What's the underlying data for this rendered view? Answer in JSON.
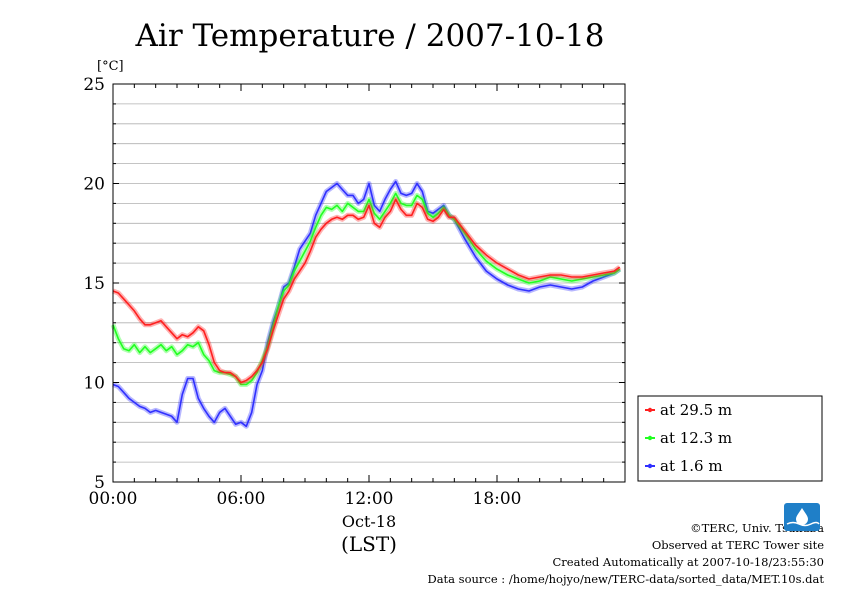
{
  "chart_data": {
    "type": "line",
    "title": "Air Temperature / 2007-10-18",
    "ylabel": "[°C]",
    "xlabel": "(LST)",
    "date_label": "Oct-18",
    "ylim": [
      5,
      25
    ],
    "yticks": [
      "5",
      "10",
      "15",
      "20",
      "25"
    ],
    "xlim": [
      0,
      24
    ],
    "xticks": [
      {
        "value": 0,
        "label": "00:00"
      },
      {
        "value": 6,
        "label": "06:00"
      },
      {
        "value": 12,
        "label": "12:00"
      },
      {
        "value": 18,
        "label": "18:00"
      }
    ],
    "grid": true,
    "legend_position": "lower-right-outside",
    "series": [
      {
        "name": "at 29.5 m",
        "color": "#ff2020",
        "x": [
          0,
          0.25,
          0.5,
          0.75,
          1,
          1.25,
          1.5,
          1.75,
          2,
          2.25,
          2.5,
          2.75,
          3,
          3.25,
          3.5,
          3.75,
          4,
          4.25,
          4.5,
          4.75,
          5,
          5.25,
          5.5,
          5.75,
          6,
          6.25,
          6.5,
          6.75,
          7,
          7.25,
          7.5,
          7.75,
          8,
          8.25,
          8.5,
          8.75,
          9,
          9.25,
          9.5,
          9.75,
          10,
          10.25,
          10.5,
          10.75,
          11,
          11.25,
          11.5,
          11.75,
          12,
          12.25,
          12.5,
          12.75,
          13,
          13.25,
          13.5,
          13.75,
          14,
          14.25,
          14.5,
          14.75,
          15,
          15.25,
          15.5,
          15.75,
          16,
          16.5,
          17,
          17.5,
          18,
          18.5,
          19,
          19.5,
          20,
          20.5,
          21,
          21.5,
          22,
          22.5,
          23,
          23.5,
          23.75
        ],
        "values": [
          14.6,
          14.5,
          14.2,
          13.9,
          13.6,
          13.2,
          12.9,
          12.9,
          13.0,
          13.1,
          12.8,
          12.5,
          12.2,
          12.4,
          12.3,
          12.5,
          12.8,
          12.6,
          11.9,
          11.0,
          10.6,
          10.5,
          10.5,
          10.3,
          10.0,
          10.1,
          10.3,
          10.6,
          11.0,
          11.7,
          12.6,
          13.4,
          14.2,
          14.6,
          15.2,
          15.6,
          16.0,
          16.6,
          17.3,
          17.7,
          18.0,
          18.2,
          18.3,
          18.2,
          18.4,
          18.4,
          18.2,
          18.3,
          18.9,
          18.0,
          17.8,
          18.3,
          18.6,
          19.2,
          18.7,
          18.4,
          18.4,
          19.0,
          18.8,
          18.2,
          18.1,
          18.3,
          18.7,
          18.3,
          18.3,
          17.6,
          16.9,
          16.4,
          16.0,
          15.7,
          15.4,
          15.2,
          15.3,
          15.4,
          15.4,
          15.3,
          15.3,
          15.4,
          15.5,
          15.6,
          15.8
        ]
      },
      {
        "name": "at 12.3 m",
        "color": "#20ff20",
        "x": [
          0,
          0.25,
          0.5,
          0.75,
          1,
          1.25,
          1.5,
          1.75,
          2,
          2.25,
          2.5,
          2.75,
          3,
          3.25,
          3.5,
          3.75,
          4,
          4.25,
          4.5,
          4.75,
          5,
          5.25,
          5.5,
          5.75,
          6,
          6.25,
          6.5,
          6.75,
          7,
          7.25,
          7.5,
          7.75,
          8,
          8.25,
          8.5,
          8.75,
          9,
          9.25,
          9.5,
          9.75,
          10,
          10.25,
          10.5,
          10.75,
          11,
          11.25,
          11.5,
          11.75,
          12,
          12.25,
          12.5,
          12.75,
          13,
          13.25,
          13.5,
          13.75,
          14,
          14.25,
          14.5,
          14.75,
          15,
          15.25,
          15.5,
          15.75,
          16,
          16.5,
          17,
          17.5,
          18,
          18.5,
          19,
          19.5,
          20,
          20.5,
          21,
          21.5,
          22,
          22.5,
          23,
          23.5,
          23.75
        ],
        "values": [
          12.9,
          12.2,
          11.7,
          11.6,
          11.9,
          11.5,
          11.8,
          11.5,
          11.7,
          11.9,
          11.6,
          11.8,
          11.4,
          11.6,
          11.9,
          11.8,
          12.0,
          11.4,
          11.1,
          10.6,
          10.5,
          10.5,
          10.4,
          10.3,
          9.9,
          9.9,
          10.1,
          10.5,
          11.1,
          11.8,
          12.8,
          13.8,
          14.6,
          14.9,
          15.6,
          16.1,
          16.6,
          17.1,
          17.8,
          18.4,
          18.8,
          18.7,
          18.9,
          18.6,
          19.0,
          18.8,
          18.6,
          18.6,
          19.2,
          18.5,
          18.2,
          18.6,
          19.0,
          19.5,
          19.0,
          18.9,
          18.9,
          19.4,
          19.2,
          18.5,
          18.3,
          18.5,
          18.8,
          18.4,
          18.2,
          17.5,
          16.7,
          16.1,
          15.7,
          15.4,
          15.2,
          15.0,
          15.1,
          15.3,
          15.2,
          15.1,
          15.2,
          15.3,
          15.4,
          15.5,
          15.7
        ]
      },
      {
        "name": "at 1.6 m",
        "color": "#3030ff",
        "x": [
          0,
          0.25,
          0.5,
          0.75,
          1,
          1.25,
          1.5,
          1.75,
          2,
          2.25,
          2.5,
          2.75,
          3,
          3.25,
          3.5,
          3.75,
          4,
          4.25,
          4.5,
          4.75,
          5,
          5.25,
          5.5,
          5.75,
          6,
          6.25,
          6.5,
          6.75,
          7,
          7.25,
          7.5,
          7.75,
          8,
          8.25,
          8.5,
          8.75,
          9,
          9.25,
          9.5,
          9.75,
          10,
          10.25,
          10.5,
          10.75,
          11,
          11.25,
          11.5,
          11.75,
          12,
          12.25,
          12.5,
          12.75,
          13,
          13.25,
          13.5,
          13.75,
          14,
          14.25,
          14.5,
          14.75,
          15,
          15.25,
          15.5,
          15.75,
          16,
          16.5,
          17,
          17.5,
          18,
          18.5,
          19,
          19.5,
          20,
          20.5,
          21,
          21.5,
          22,
          22.5,
          23,
          23.5,
          23.75
        ],
        "values": [
          9.9,
          9.8,
          9.5,
          9.2,
          9.0,
          8.8,
          8.7,
          8.5,
          8.6,
          8.5,
          8.4,
          8.3,
          8.0,
          9.4,
          10.2,
          10.2,
          9.2,
          8.7,
          8.3,
          8.0,
          8.5,
          8.7,
          8.3,
          7.9,
          8.0,
          7.8,
          8.5,
          9.9,
          10.6,
          12.0,
          13.0,
          13.8,
          14.8,
          15.0,
          15.8,
          16.7,
          17.1,
          17.5,
          18.4,
          19.0,
          19.6,
          19.8,
          20.0,
          19.7,
          19.4,
          19.4,
          19.0,
          19.2,
          20.0,
          18.9,
          18.6,
          19.2,
          19.7,
          20.1,
          19.5,
          19.4,
          19.5,
          20.0,
          19.6,
          18.6,
          18.5,
          18.7,
          18.9,
          18.4,
          18.2,
          17.2,
          16.3,
          15.6,
          15.2,
          14.9,
          14.7,
          14.6,
          14.8,
          14.9,
          14.8,
          14.7,
          14.8,
          15.1,
          15.3,
          15.5,
          15.7
        ]
      }
    ]
  },
  "footer": {
    "credit": "©TERC, Univ. Tsukuba",
    "site": "Observed at TERC Tower site",
    "created": "Created Automatically at 2007-10-18/23:55:30",
    "source": "Data source : /home/hojyo/new/TERC-data/sorted_data/MET.10s.dat"
  },
  "logo": {
    "text": "TERC",
    "color": "#1f7fc8"
  }
}
